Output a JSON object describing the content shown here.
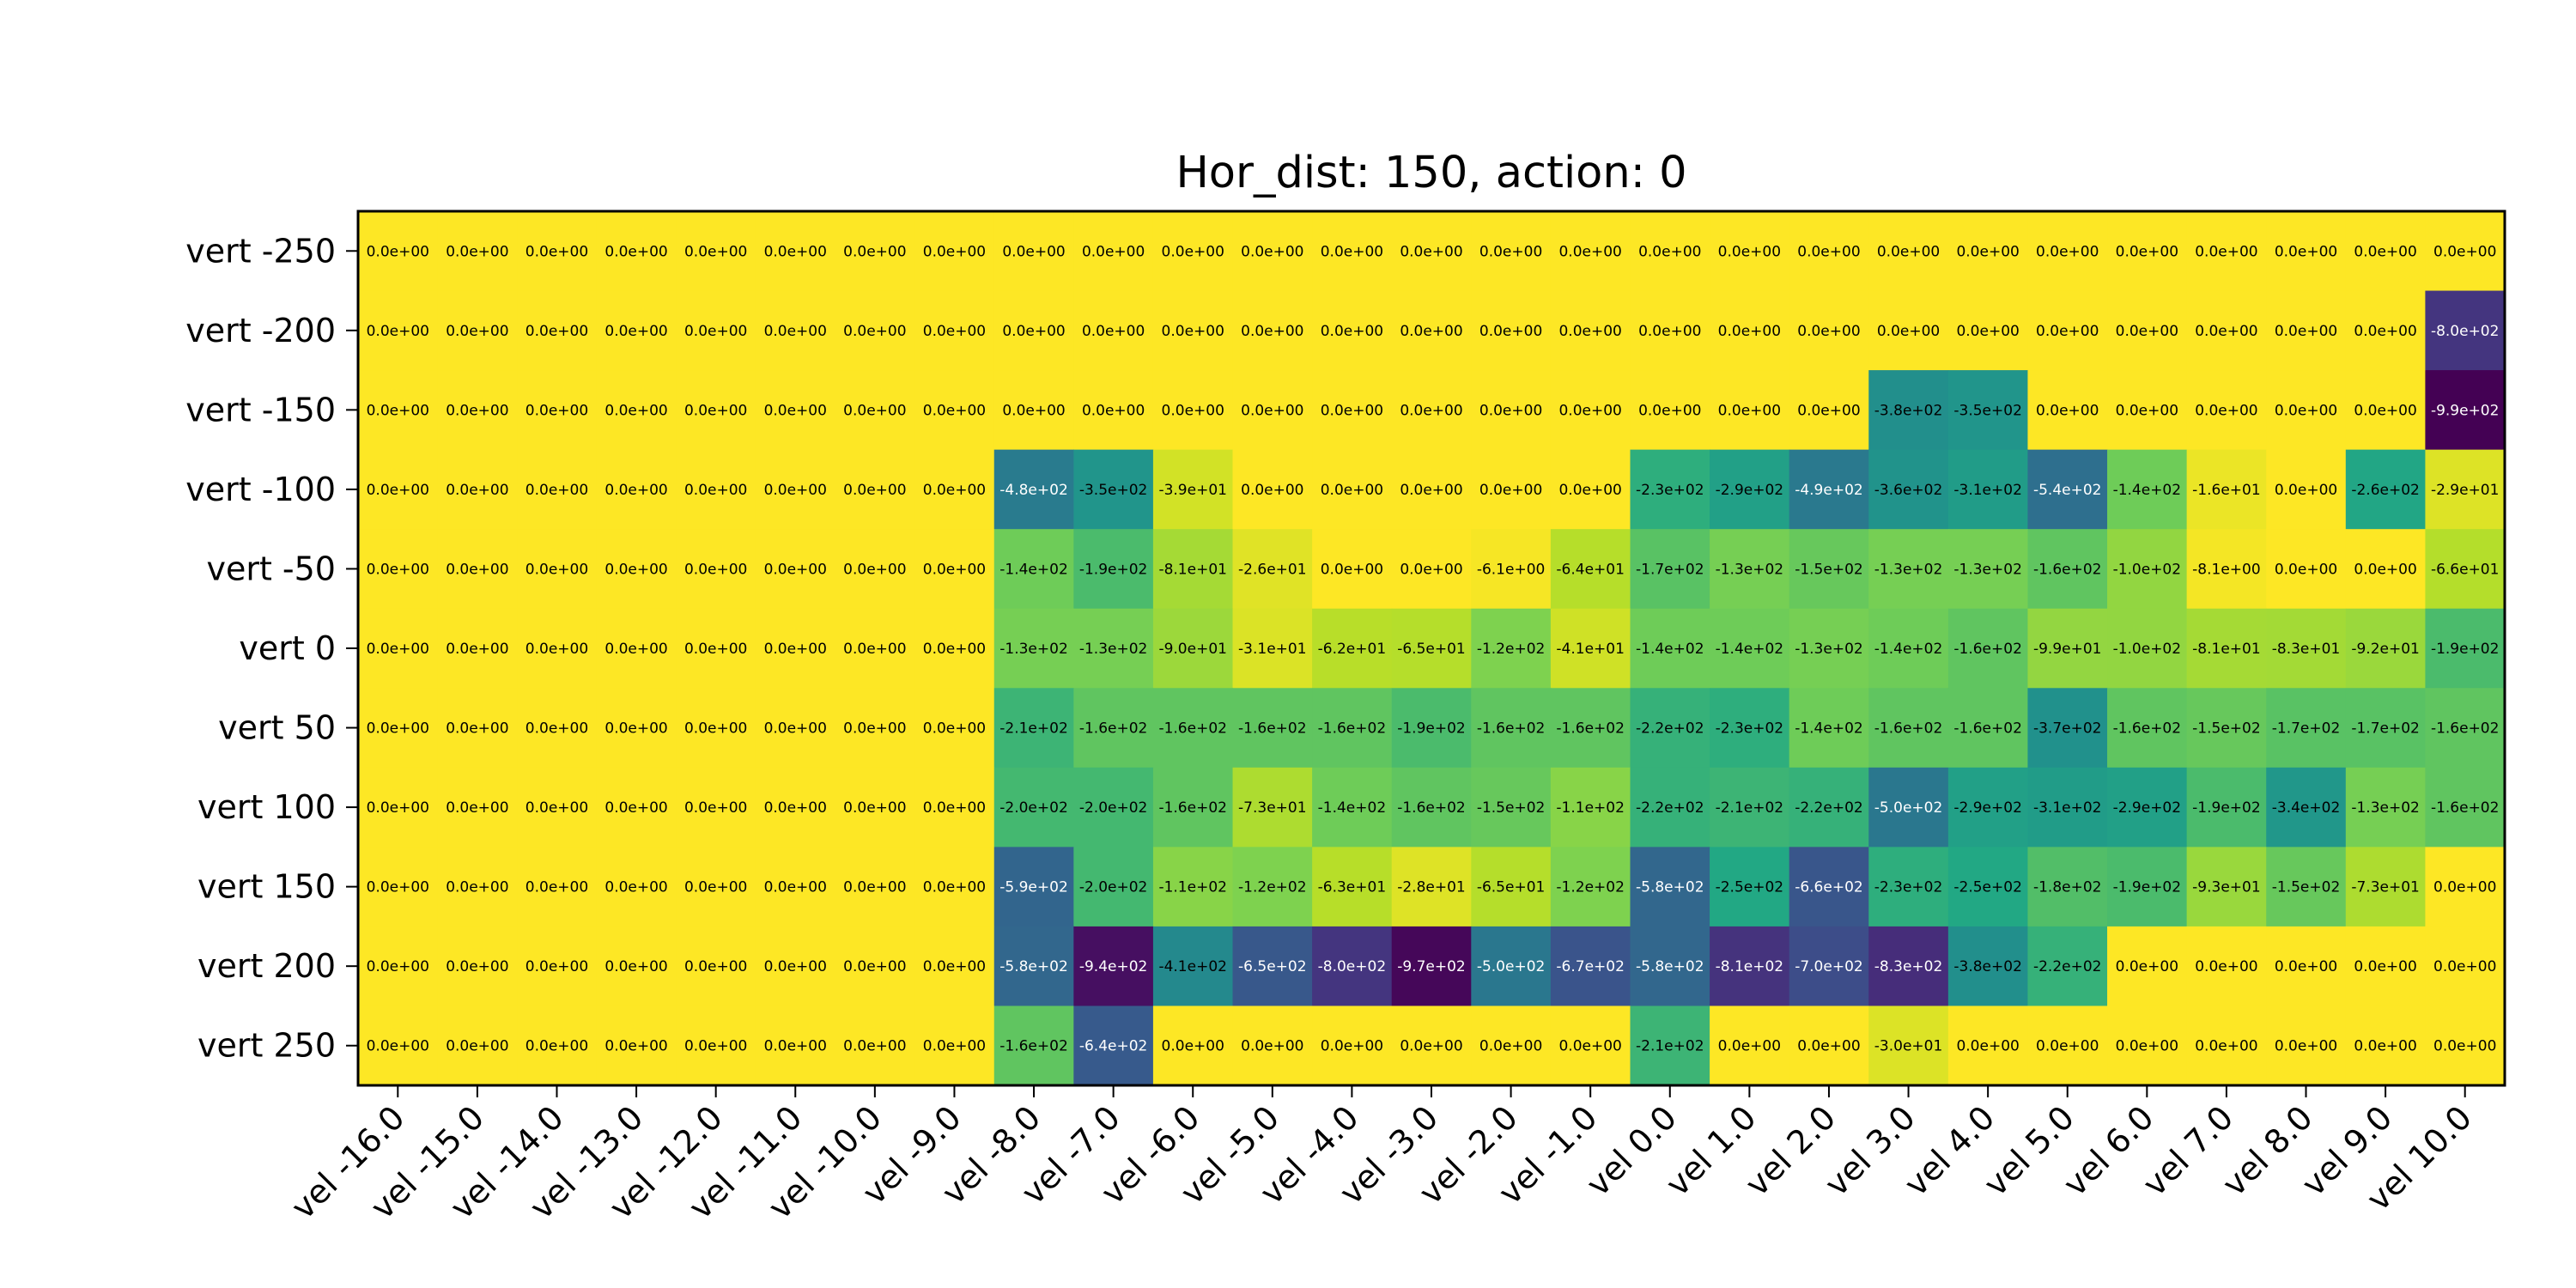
{
  "chart_data": {
    "type": "heatmap",
    "title": "Hor_dist: 150, action: 0",
    "x_ticks": [
      "vel -16.0",
      "vel -15.0",
      "vel -14.0",
      "vel -13.0",
      "vel -12.0",
      "vel -11.0",
      "vel -10.0",
      "vel -9.0",
      "vel -8.0",
      "vel -7.0",
      "vel -6.0",
      "vel -5.0",
      "vel -4.0",
      "vel -3.0",
      "vel -2.0",
      "vel -1.0",
      "vel 0.0",
      "vel 1.0",
      "vel 2.0",
      "vel 3.0",
      "vel 4.0",
      "vel 5.0",
      "vel 6.0",
      "vel 7.0",
      "vel 8.0",
      "vel 9.0",
      "vel 10.0"
    ],
    "y_ticks": [
      "vert -250",
      "vert -200",
      "vert -150",
      "vert -100",
      "vert -50",
      "vert 0",
      "vert 50",
      "vert 100",
      "vert 150",
      "vert 200",
      "vert 250"
    ],
    "colormap": "viridis (reversed: high negative = dark purple, 0 = yellow)",
    "value_range": [
      -990,
      0
    ],
    "grid": false,
    "values": [
      [
        0,
        0,
        0,
        0,
        0,
        0,
        0,
        0,
        0,
        0,
        0,
        0,
        0,
        0,
        0,
        0,
        0,
        0,
        0,
        0,
        0,
        0,
        0,
        0,
        0,
        0,
        0
      ],
      [
        0,
        0,
        0,
        0,
        0,
        0,
        0,
        0,
        0,
        0,
        0,
        0,
        0,
        0,
        0,
        0,
        0,
        0,
        0,
        0,
        0,
        0,
        0,
        0,
        0,
        0,
        -800
      ],
      [
        0,
        0,
        0,
        0,
        0,
        0,
        0,
        0,
        0,
        0,
        0,
        0,
        0,
        0,
        0,
        0,
        0,
        0,
        0,
        -380,
        -350,
        0,
        0,
        0,
        0,
        0,
        -990
      ],
      [
        0,
        0,
        0,
        0,
        0,
        0,
        0,
        0,
        -480,
        -350,
        -39,
        0,
        0,
        0,
        0,
        0,
        -230,
        -290,
        -490,
        -360,
        -310,
        -540,
        -140,
        -16,
        0,
        -260,
        -29
      ],
      [
        0,
        0,
        0,
        0,
        0,
        0,
        0,
        0,
        -140,
        -190,
        -81,
        -26,
        0,
        0,
        -6.1,
        -64,
        -170,
        -130,
        -150,
        -130,
        -130,
        -160,
        -100,
        -8.1,
        0,
        0,
        -66
      ],
      [
        0,
        0,
        0,
        0,
        0,
        0,
        0,
        0,
        -130,
        -130,
        -90,
        -31,
        -62,
        -65,
        -120,
        -41,
        -140,
        -140,
        -130,
        -140,
        -160,
        -99,
        -100,
        -81,
        -83,
        -92,
        -190
      ],
      [
        0,
        0,
        0,
        0,
        0,
        0,
        0,
        0,
        -210,
        -160,
        -160,
        -160,
        -160,
        -190,
        -160,
        -160,
        -220,
        -230,
        -140,
        -160,
        -160,
        -370,
        -160,
        -150,
        -170,
        -170,
        -160
      ],
      [
        0,
        0,
        0,
        0,
        0,
        0,
        0,
        0,
        -200,
        -200,
        -160,
        -73,
        -140,
        -160,
        -150,
        -110,
        -220,
        -210,
        -220,
        -500,
        -290,
        -310,
        -290,
        -190,
        -340,
        -130,
        -160
      ],
      [
        0,
        0,
        0,
        0,
        0,
        0,
        0,
        0,
        -590,
        -200,
        -110,
        -120,
        -63,
        -28,
        -65,
        -120,
        -580,
        -250,
        -660,
        -230,
        -250,
        -180,
        -190,
        -93,
        -150,
        -73,
        0
      ],
      [
        0,
        0,
        0,
        0,
        0,
        0,
        0,
        0,
        -580,
        -940,
        -410,
        -650,
        -800,
        -970,
        -500,
        -670,
        -580,
        -810,
        -700,
        -830,
        -380,
        -220,
        0,
        0,
        0,
        0,
        0
      ],
      [
        0,
        0,
        0,
        0,
        0,
        0,
        0,
        0,
        -160,
        -640,
        0,
        0,
        0,
        0,
        0,
        0,
        -210,
        0,
        0,
        -30,
        0,
        0,
        0,
        0,
        0,
        0,
        0
      ]
    ],
    "labels": [
      [
        "0.0e+00",
        "0.0e+00",
        "0.0e+00",
        "0.0e+00",
        "0.0e+00",
        "0.0e+00",
        "0.0e+00",
        "0.0e+00",
        "0.0e+00",
        "0.0e+00",
        "0.0e+00",
        "0.0e+00",
        "0.0e+00",
        "0.0e+00",
        "0.0e+00",
        "0.0e+00",
        "0.0e+00",
        "0.0e+00",
        "0.0e+00",
        "0.0e+00",
        "0.0e+00",
        "0.0e+00",
        "0.0e+00",
        "0.0e+00",
        "0.0e+00",
        "0.0e+00",
        "0.0e+00"
      ],
      [
        "0.0e+00",
        "0.0e+00",
        "0.0e+00",
        "0.0e+00",
        "0.0e+00",
        "0.0e+00",
        "0.0e+00",
        "0.0e+00",
        "0.0e+00",
        "0.0e+00",
        "0.0e+00",
        "0.0e+00",
        "0.0e+00",
        "0.0e+00",
        "0.0e+00",
        "0.0e+00",
        "0.0e+00",
        "0.0e+00",
        "0.0e+00",
        "0.0e+00",
        "0.0e+00",
        "0.0e+00",
        "0.0e+00",
        "0.0e+00",
        "0.0e+00",
        "0.0e+00",
        "-8.0e+02"
      ],
      [
        "0.0e+00",
        "0.0e+00",
        "0.0e+00",
        "0.0e+00",
        "0.0e+00",
        "0.0e+00",
        "0.0e+00",
        "0.0e+00",
        "0.0e+00",
        "0.0e+00",
        "0.0e+00",
        "0.0e+00",
        "0.0e+00",
        "0.0e+00",
        "0.0e+00",
        "0.0e+00",
        "0.0e+00",
        "0.0e+00",
        "0.0e+00",
        "-3.8e+02",
        "-3.5e+02",
        "0.0e+00",
        "0.0e+00",
        "0.0e+00",
        "0.0e+00",
        "0.0e+00",
        "-9.9e+02"
      ],
      [
        "0.0e+00",
        "0.0e+00",
        "0.0e+00",
        "0.0e+00",
        "0.0e+00",
        "0.0e+00",
        "0.0e+00",
        "0.0e+00",
        "-4.8e+02",
        "-3.5e+02",
        "-3.9e+01",
        "0.0e+00",
        "0.0e+00",
        "0.0e+00",
        "0.0e+00",
        "0.0e+00",
        "-2.3e+02",
        "-2.9e+02",
        "-4.9e+02",
        "-3.6e+02",
        "-3.1e+02",
        "-5.4e+02",
        "-1.4e+02",
        "-1.6e+01",
        "0.0e+00",
        "-2.6e+02",
        "-2.9e+01"
      ],
      [
        "0.0e+00",
        "0.0e+00",
        "0.0e+00",
        "0.0e+00",
        "0.0e+00",
        "0.0e+00",
        "0.0e+00",
        "0.0e+00",
        "-1.4e+02",
        "-1.9e+02",
        "-8.1e+01",
        "-2.6e+01",
        "0.0e+00",
        "0.0e+00",
        "-6.1e+00",
        "-6.4e+01",
        "-1.7e+02",
        "-1.3e+02",
        "-1.5e+02",
        "-1.3e+02",
        "-1.3e+02",
        "-1.6e+02",
        "-1.0e+02",
        "-8.1e+00",
        "0.0e+00",
        "0.0e+00",
        "-6.6e+01"
      ],
      [
        "0.0e+00",
        "0.0e+00",
        "0.0e+00",
        "0.0e+00",
        "0.0e+00",
        "0.0e+00",
        "0.0e+00",
        "0.0e+00",
        "-1.3e+02",
        "-1.3e+02",
        "-9.0e+01",
        "-3.1e+01",
        "-6.2e+01",
        "-6.5e+01",
        "-1.2e+02",
        "-4.1e+01",
        "-1.4e+02",
        "-1.4e+02",
        "-1.3e+02",
        "-1.4e+02",
        "-1.6e+02",
        "-9.9e+01",
        "-1.0e+02",
        "-8.1e+01",
        "-8.3e+01",
        "-9.2e+01",
        "-1.9e+02"
      ],
      [
        "0.0e+00",
        "0.0e+00",
        "0.0e+00",
        "0.0e+00",
        "0.0e+00",
        "0.0e+00",
        "0.0e+00",
        "0.0e+00",
        "-2.1e+02",
        "-1.6e+02",
        "-1.6e+02",
        "-1.6e+02",
        "-1.6e+02",
        "-1.9e+02",
        "-1.6e+02",
        "-1.6e+02",
        "-2.2e+02",
        "-2.3e+02",
        "-1.4e+02",
        "-1.6e+02",
        "-1.6e+02",
        "-3.7e+02",
        "-1.6e+02",
        "-1.5e+02",
        "-1.7e+02",
        "-1.7e+02",
        "-1.6e+02"
      ],
      [
        "0.0e+00",
        "0.0e+00",
        "0.0e+00",
        "0.0e+00",
        "0.0e+00",
        "0.0e+00",
        "0.0e+00",
        "0.0e+00",
        "-2.0e+02",
        "-2.0e+02",
        "-1.6e+02",
        "-7.3e+01",
        "-1.4e+02",
        "-1.6e+02",
        "-1.5e+02",
        "-1.1e+02",
        "-2.2e+02",
        "-2.1e+02",
        "-2.2e+02",
        "-5.0e+02",
        "-2.9e+02",
        "-3.1e+02",
        "-2.9e+02",
        "-1.9e+02",
        "-3.4e+02",
        "-1.3e+02",
        "-1.6e+02"
      ],
      [
        "0.0e+00",
        "0.0e+00",
        "0.0e+00",
        "0.0e+00",
        "0.0e+00",
        "0.0e+00",
        "0.0e+00",
        "0.0e+00",
        "-5.9e+02",
        "-2.0e+02",
        "-1.1e+02",
        "-1.2e+02",
        "-6.3e+01",
        "-2.8e+01",
        "-6.5e+01",
        "-1.2e+02",
        "-5.8e+02",
        "-2.5e+02",
        "-6.6e+02",
        "-2.3e+02",
        "-2.5e+02",
        "-1.8e+02",
        "-1.9e+02",
        "-9.3e+01",
        "-1.5e+02",
        "-7.3e+01",
        "0.0e+00"
      ],
      [
        "0.0e+00",
        "0.0e+00",
        "0.0e+00",
        "0.0e+00",
        "0.0e+00",
        "0.0e+00",
        "0.0e+00",
        "0.0e+00",
        "-5.8e+02",
        "-9.4e+02",
        "-4.1e+02",
        "-6.5e+02",
        "-8.0e+02",
        "-9.7e+02",
        "-5.0e+02",
        "-6.7e+02",
        "-5.8e+02",
        "-8.1e+02",
        "-7.0e+02",
        "-8.3e+02",
        "-3.8e+02",
        "-2.2e+02",
        "0.0e+00",
        "0.0e+00",
        "0.0e+00",
        "0.0e+00",
        "0.0e+00"
      ],
      [
        "0.0e+00",
        "0.0e+00",
        "0.0e+00",
        "0.0e+00",
        "0.0e+00",
        "0.0e+00",
        "0.0e+00",
        "0.0e+00",
        "-1.6e+02",
        "-6.4e+02",
        "0.0e+00",
        "0.0e+00",
        "0.0e+00",
        "0.0e+00",
        "0.0e+00",
        "0.0e+00",
        "-2.1e+02",
        "0.0e+00",
        "0.0e+00",
        "-3.0e+01",
        "0.0e+00",
        "0.0e+00",
        "0.0e+00",
        "0.0e+00",
        "0.0e+00",
        "0.0e+00",
        "0.0e+00"
      ]
    ]
  }
}
